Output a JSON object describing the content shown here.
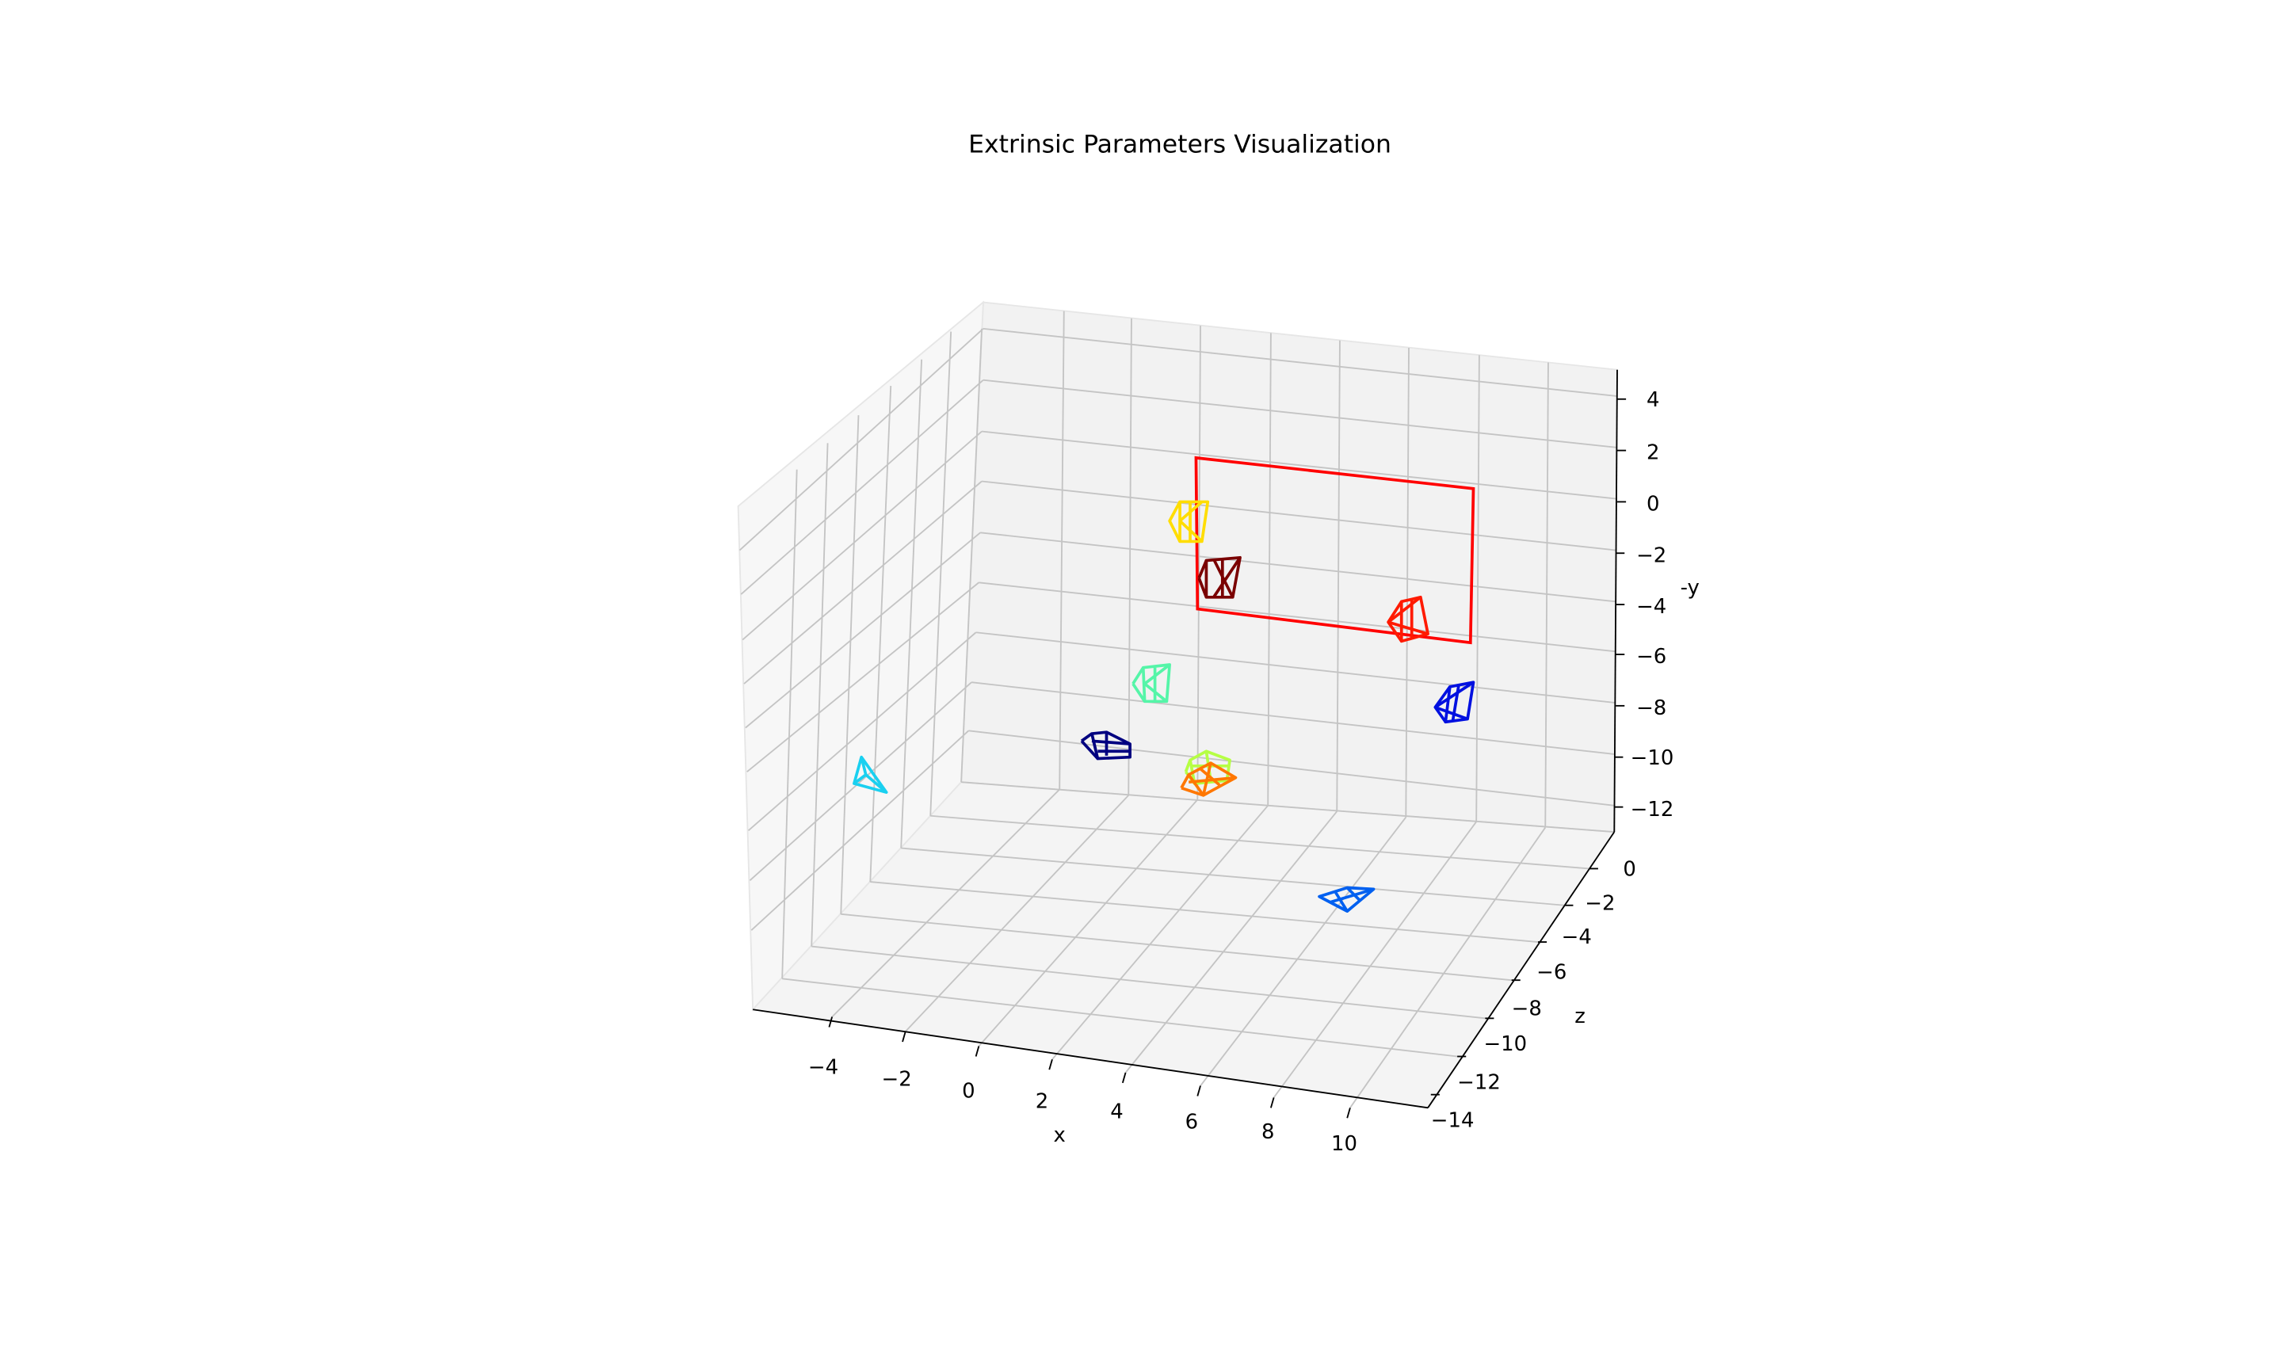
{
  "chart_data": {
    "type": "3d-wireframe",
    "title": "Extrinsic Parameters Visualization",
    "xlabel": "x",
    "ylabel": "-y",
    "zlabel": "z",
    "xticks": [
      "−4",
      "−2",
      "0",
      "2",
      "4",
      "6",
      "8",
      "10"
    ],
    "yticks": [
      "4",
      "2",
      "0",
      "−2",
      "−4",
      "−6",
      "−8",
      "−10",
      "−12"
    ],
    "zticks": [
      "0",
      "−2",
      "−4",
      "−6",
      "−8",
      "−10",
      "−12",
      "−14"
    ],
    "grid": true,
    "board": {
      "name": "calibration-board",
      "color": "#ff0000"
    },
    "cameras": [
      {
        "name": "camera-yellow",
        "color": "#ffdd00"
      },
      {
        "name": "camera-maroon",
        "color": "#7a0000"
      },
      {
        "name": "camera-red",
        "color": "#ff1a00"
      },
      {
        "name": "camera-mint",
        "color": "#55f5a8"
      },
      {
        "name": "camera-blue",
        "color": "#0010e0"
      },
      {
        "name": "camera-navy",
        "color": "#000080"
      },
      {
        "name": "camera-lime",
        "color": "#b6ff44"
      },
      {
        "name": "camera-orange",
        "color": "#ff7700"
      },
      {
        "name": "camera-cyan",
        "color": "#1ad0f0"
      },
      {
        "name": "camera-azure",
        "color": "#0060f0"
      }
    ]
  }
}
